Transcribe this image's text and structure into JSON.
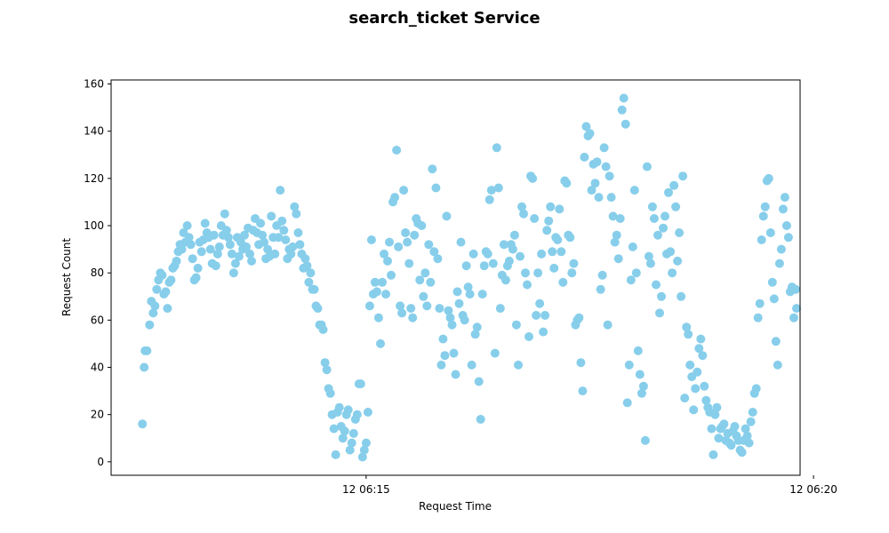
{
  "chart_data": {
    "type": "scatter",
    "title": "search_ticket Service",
    "xlabel": "Request Time",
    "ylabel": "Request Count",
    "x_unit": "minutes after 12 06:10",
    "xlim": [
      2.15,
      9.85
    ],
    "ylim": [
      -5.7,
      161.7
    ],
    "y_ticks": [
      0,
      20,
      40,
      60,
      80,
      100,
      120,
      140,
      160
    ],
    "x_ticks": [
      {
        "value": 5,
        "label": "12 06:15"
      },
      {
        "value": 10,
        "label": "12 06:20"
      }
    ],
    "grid": false,
    "marker_color": "#87ceeb",
    "points": [
      [
        2.5,
        16
      ],
      [
        2.52,
        40
      ],
      [
        2.53,
        47
      ],
      [
        2.55,
        47
      ],
      [
        2.58,
        58
      ],
      [
        2.6,
        68
      ],
      [
        2.62,
        63
      ],
      [
        2.64,
        66
      ],
      [
        2.66,
        73
      ],
      [
        2.68,
        77
      ],
      [
        2.7,
        80
      ],
      [
        2.72,
        79
      ],
      [
        2.74,
        71
      ],
      [
        2.76,
        72
      ],
      [
        2.78,
        65
      ],
      [
        2.8,
        76
      ],
      [
        2.82,
        77
      ],
      [
        2.84,
        82
      ],
      [
        2.86,
        83
      ],
      [
        2.88,
        85
      ],
      [
        2.9,
        89
      ],
      [
        2.92,
        92
      ],
      [
        2.94,
        90
      ],
      [
        2.96,
        97
      ],
      [
        2.98,
        93
      ],
      [
        3.0,
        100
      ],
      [
        3.02,
        95
      ],
      [
        3.04,
        92
      ],
      [
        3.06,
        86
      ],
      [
        3.08,
        77
      ],
      [
        3.1,
        78
      ],
      [
        3.12,
        82
      ],
      [
        3.14,
        93
      ],
      [
        3.16,
        89
      ],
      [
        3.18,
        94
      ],
      [
        3.2,
        101
      ],
      [
        3.22,
        97
      ],
      [
        3.24,
        95
      ],
      [
        3.26,
        90
      ],
      [
        3.28,
        84
      ],
      [
        3.3,
        96
      ],
      [
        3.32,
        83
      ],
      [
        3.34,
        88
      ],
      [
        3.36,
        91
      ],
      [
        3.38,
        100
      ],
      [
        3.4,
        96
      ],
      [
        3.42,
        105
      ],
      [
        3.44,
        98
      ],
      [
        3.46,
        95
      ],
      [
        3.48,
        92
      ],
      [
        3.5,
        88
      ],
      [
        3.52,
        80
      ],
      [
        3.54,
        84
      ],
      [
        3.56,
        95
      ],
      [
        3.58,
        87
      ],
      [
        3.6,
        93
      ],
      [
        3.62,
        90
      ],
      [
        3.64,
        96
      ],
      [
        3.66,
        91
      ],
      [
        3.68,
        99
      ],
      [
        3.7,
        88
      ],
      [
        3.72,
        85
      ],
      [
        3.74,
        98
      ],
      [
        3.76,
        103
      ],
      [
        3.78,
        97
      ],
      [
        3.8,
        92
      ],
      [
        3.82,
        101
      ],
      [
        3.84,
        96
      ],
      [
        3.86,
        93
      ],
      [
        3.88,
        86
      ],
      [
        3.9,
        90
      ],
      [
        3.92,
        87
      ],
      [
        3.94,
        104
      ],
      [
        3.96,
        95
      ],
      [
        3.98,
        88
      ],
      [
        4.0,
        100
      ],
      [
        4.02,
        95
      ],
      [
        4.04,
        115
      ],
      [
        4.06,
        102
      ],
      [
        4.08,
        98
      ],
      [
        4.1,
        94
      ],
      [
        4.12,
        86
      ],
      [
        4.14,
        90
      ],
      [
        4.16,
        88
      ],
      [
        4.18,
        91
      ],
      [
        4.2,
        108
      ],
      [
        4.22,
        105
      ],
      [
        4.24,
        97
      ],
      [
        4.26,
        92
      ],
      [
        4.28,
        88
      ],
      [
        4.3,
        82
      ],
      [
        4.32,
        86
      ],
      [
        4.34,
        83
      ],
      [
        4.36,
        76
      ],
      [
        4.38,
        80
      ],
      [
        4.4,
        73
      ],
      [
        4.42,
        73
      ],
      [
        4.44,
        66
      ],
      [
        4.46,
        65
      ],
      [
        4.48,
        58
      ],
      [
        4.5,
        58
      ],
      [
        4.52,
        56
      ],
      [
        4.54,
        42
      ],
      [
        4.56,
        39
      ],
      [
        4.58,
        31
      ],
      [
        4.6,
        29
      ],
      [
        4.62,
        20
      ],
      [
        4.64,
        14
      ],
      [
        4.66,
        3
      ],
      [
        4.68,
        21
      ],
      [
        4.7,
        23
      ],
      [
        4.72,
        15
      ],
      [
        4.74,
        10
      ],
      [
        4.76,
        13
      ],
      [
        4.78,
        20
      ],
      [
        4.8,
        22
      ],
      [
        4.82,
        5
      ],
      [
        4.84,
        8
      ],
      [
        4.86,
        12
      ],
      [
        4.88,
        18
      ],
      [
        4.9,
        20
      ],
      [
        4.92,
        33
      ],
      [
        4.94,
        33
      ],
      [
        4.96,
        2
      ],
      [
        4.98,
        5
      ],
      [
        5.0,
        8
      ],
      [
        5.02,
        21
      ],
      [
        5.04,
        66
      ],
      [
        5.06,
        94
      ],
      [
        5.08,
        71
      ],
      [
        5.1,
        76
      ],
      [
        5.12,
        72
      ],
      [
        5.14,
        61
      ],
      [
        5.16,
        50
      ],
      [
        5.18,
        76
      ],
      [
        5.2,
        88
      ],
      [
        5.22,
        71
      ],
      [
        5.24,
        85
      ],
      [
        5.26,
        93
      ],
      [
        5.28,
        79
      ],
      [
        5.3,
        110
      ],
      [
        5.32,
        112
      ],
      [
        5.34,
        132
      ],
      [
        5.36,
        91
      ],
      [
        5.38,
        66
      ],
      [
        5.4,
        63
      ],
      [
        5.42,
        115
      ],
      [
        5.44,
        97
      ],
      [
        5.46,
        93
      ],
      [
        5.48,
        84
      ],
      [
        5.5,
        65
      ],
      [
        5.52,
        61
      ],
      [
        5.54,
        96
      ],
      [
        5.56,
        103
      ],
      [
        5.58,
        101
      ],
      [
        5.6,
        77
      ],
      [
        5.62,
        100
      ],
      [
        5.64,
        70
      ],
      [
        5.66,
        80
      ],
      [
        5.68,
        66
      ],
      [
        5.7,
        92
      ],
      [
        5.72,
        76
      ],
      [
        5.74,
        124
      ],
      [
        5.76,
        89
      ],
      [
        5.78,
        116
      ],
      [
        5.8,
        86
      ],
      [
        5.82,
        65
      ],
      [
        5.84,
        41
      ],
      [
        5.86,
        52
      ],
      [
        5.88,
        45
      ],
      [
        5.9,
        104
      ],
      [
        5.92,
        64
      ],
      [
        5.94,
        61
      ],
      [
        5.96,
        58
      ],
      [
        5.98,
        46
      ],
      [
        6.0,
        37
      ],
      [
        6.02,
        72
      ],
      [
        6.04,
        67
      ],
      [
        6.06,
        93
      ],
      [
        6.08,
        62
      ],
      [
        6.1,
        60
      ],
      [
        6.12,
        83
      ],
      [
        6.14,
        74
      ],
      [
        6.16,
        71
      ],
      [
        6.18,
        41
      ],
      [
        6.2,
        88
      ],
      [
        6.22,
        54
      ],
      [
        6.24,
        57
      ],
      [
        6.26,
        34
      ],
      [
        6.28,
        18
      ],
      [
        6.3,
        71
      ],
      [
        6.32,
        83
      ],
      [
        6.34,
        89
      ],
      [
        6.36,
        88
      ],
      [
        6.38,
        111
      ],
      [
        6.4,
        115
      ],
      [
        6.42,
        84
      ],
      [
        6.44,
        46
      ],
      [
        6.46,
        133
      ],
      [
        6.48,
        116
      ],
      [
        6.5,
        65
      ],
      [
        6.52,
        79
      ],
      [
        6.54,
        92
      ],
      [
        6.56,
        77
      ],
      [
        6.58,
        83
      ],
      [
        6.6,
        85
      ],
      [
        6.62,
        92
      ],
      [
        6.64,
        90
      ],
      [
        6.66,
        96
      ],
      [
        6.68,
        58
      ],
      [
        6.7,
        41
      ],
      [
        6.72,
        87
      ],
      [
        6.74,
        108
      ],
      [
        6.76,
        105
      ],
      [
        6.78,
        80
      ],
      [
        6.8,
        75
      ],
      [
        6.82,
        53
      ],
      [
        6.84,
        121
      ],
      [
        6.86,
        120
      ],
      [
        6.88,
        103
      ],
      [
        6.9,
        62
      ],
      [
        6.92,
        80
      ],
      [
        6.94,
        67
      ],
      [
        6.96,
        88
      ],
      [
        6.98,
        55
      ],
      [
        7.0,
        62
      ],
      [
        7.02,
        98
      ],
      [
        7.04,
        102
      ],
      [
        7.06,
        108
      ],
      [
        7.08,
        89
      ],
      [
        7.1,
        82
      ],
      [
        7.12,
        95
      ],
      [
        7.14,
        94
      ],
      [
        7.16,
        107
      ],
      [
        7.18,
        89
      ],
      [
        7.2,
        76
      ],
      [
        7.22,
        119
      ],
      [
        7.24,
        118
      ],
      [
        7.26,
        96
      ],
      [
        7.28,
        95
      ],
      [
        7.3,
        80
      ],
      [
        7.32,
        84
      ],
      [
        7.34,
        58
      ],
      [
        7.36,
        60
      ],
      [
        7.38,
        61
      ],
      [
        7.4,
        42
      ],
      [
        7.42,
        30
      ],
      [
        7.44,
        129
      ],
      [
        7.46,
        142
      ],
      [
        7.48,
        138
      ],
      [
        7.5,
        139
      ],
      [
        7.52,
        115
      ],
      [
        7.54,
        126
      ],
      [
        7.56,
        118
      ],
      [
        7.58,
        127
      ],
      [
        7.6,
        112
      ],
      [
        7.62,
        73
      ],
      [
        7.64,
        79
      ],
      [
        7.66,
        133
      ],
      [
        7.68,
        125
      ],
      [
        7.7,
        58
      ],
      [
        7.72,
        121
      ],
      [
        7.74,
        112
      ],
      [
        7.76,
        104
      ],
      [
        7.78,
        93
      ],
      [
        7.8,
        96
      ],
      [
        7.82,
        86
      ],
      [
        7.84,
        103
      ],
      [
        7.86,
        149
      ],
      [
        7.88,
        154
      ],
      [
        7.9,
        143
      ],
      [
        7.92,
        25
      ],
      [
        7.94,
        41
      ],
      [
        7.96,
        77
      ],
      [
        7.98,
        91
      ],
      [
        8.0,
        115
      ],
      [
        8.02,
        80
      ],
      [
        8.04,
        47
      ],
      [
        8.06,
        37
      ],
      [
        8.08,
        29
      ],
      [
        8.1,
        32
      ],
      [
        8.12,
        9
      ],
      [
        8.14,
        125
      ],
      [
        8.16,
        87
      ],
      [
        8.18,
        84
      ],
      [
        8.2,
        108
      ],
      [
        8.22,
        103
      ],
      [
        8.24,
        75
      ],
      [
        8.26,
        96
      ],
      [
        8.28,
        63
      ],
      [
        8.3,
        70
      ],
      [
        8.32,
        99
      ],
      [
        8.34,
        104
      ],
      [
        8.36,
        88
      ],
      [
        8.38,
        114
      ],
      [
        8.4,
        89
      ],
      [
        8.42,
        80
      ],
      [
        8.44,
        117
      ],
      [
        8.46,
        108
      ],
      [
        8.48,
        85
      ],
      [
        8.5,
        97
      ],
      [
        8.52,
        70
      ],
      [
        8.54,
        121
      ],
      [
        8.56,
        27
      ],
      [
        8.58,
        57
      ],
      [
        8.6,
        54
      ],
      [
        8.62,
        41
      ],
      [
        8.64,
        36
      ],
      [
        8.66,
        22
      ],
      [
        8.68,
        31
      ],
      [
        8.7,
        38
      ],
      [
        8.72,
        48
      ],
      [
        8.74,
        52
      ],
      [
        8.76,
        45
      ],
      [
        8.78,
        32
      ],
      [
        8.8,
        26
      ],
      [
        8.82,
        23
      ],
      [
        8.84,
        21
      ],
      [
        8.86,
        14
      ],
      [
        8.88,
        3
      ],
      [
        8.9,
        20
      ],
      [
        8.92,
        23
      ],
      [
        8.94,
        10
      ],
      [
        8.96,
        14
      ],
      [
        8.98,
        15
      ],
      [
        9.0,
        16
      ],
      [
        9.02,
        9
      ],
      [
        9.04,
        12
      ],
      [
        9.06,
        8
      ],
      [
        9.08,
        7
      ],
      [
        9.1,
        13
      ],
      [
        9.12,
        15
      ],
      [
        9.14,
        11
      ],
      [
        9.16,
        9
      ],
      [
        9.18,
        5
      ],
      [
        9.2,
        4
      ],
      [
        9.22,
        9
      ],
      [
        9.24,
        14
      ],
      [
        9.26,
        11
      ],
      [
        9.28,
        8
      ],
      [
        9.3,
        17
      ],
      [
        9.32,
        21
      ],
      [
        9.34,
        29
      ],
      [
        9.36,
        31
      ],
      [
        9.38,
        61
      ],
      [
        9.4,
        67
      ],
      [
        9.42,
        94
      ],
      [
        9.44,
        104
      ],
      [
        9.46,
        108
      ],
      [
        9.48,
        119
      ],
      [
        9.5,
        120
      ],
      [
        9.52,
        97
      ],
      [
        9.54,
        76
      ],
      [
        9.56,
        69
      ],
      [
        9.58,
        51
      ],
      [
        9.6,
        41
      ],
      [
        9.62,
        84
      ],
      [
        9.64,
        90
      ],
      [
        9.66,
        107
      ],
      [
        9.68,
        112
      ],
      [
        9.7,
        100
      ],
      [
        9.72,
        95
      ],
      [
        9.74,
        72
      ],
      [
        9.76,
        74
      ],
      [
        9.78,
        61
      ],
      [
        9.8,
        73
      ],
      [
        9.81,
        65
      ]
    ]
  }
}
